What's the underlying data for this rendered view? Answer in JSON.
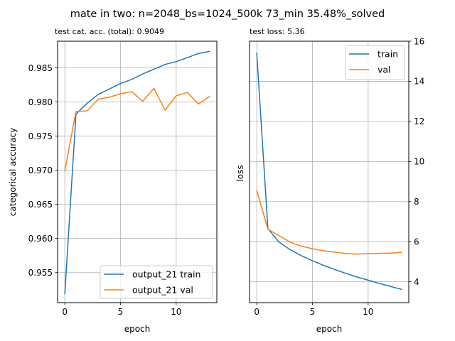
{
  "figure": {
    "suptitle": "mate in two: n=2048_bs=1024_500k  73_min  35.48%_solved"
  },
  "colors": {
    "train": "#1f77b4",
    "val": "#ff7f0e"
  },
  "chart_data": [
    {
      "type": "line",
      "title": "test cat. acc. (total): 0.9049",
      "xlabel": "epoch",
      "ylabel": "categorical accuracy",
      "xlim": [
        -0.65,
        13.65
      ],
      "ylim": [
        0.9506,
        0.9889
      ],
      "xticks": [
        0,
        5,
        10
      ],
      "xtick_labels": [
        "0",
        "5",
        "10"
      ],
      "yticks": [
        0.955,
        0.96,
        0.965,
        0.97,
        0.975,
        0.98,
        0.985
      ],
      "ytick_labels": [
        "0.955",
        "0.960",
        "0.965",
        "0.970",
        "0.975",
        "0.980",
        "0.985"
      ],
      "yaxis_side": "left",
      "grid": true,
      "legend_position": "lower-right",
      "x": [
        0,
        1,
        2,
        3,
        4,
        5,
        6,
        7,
        8,
        9,
        10,
        11,
        12,
        13
      ],
      "series": [
        {
          "name": "output_21 train",
          "color_key": "train",
          "values": [
            0.9519,
            0.9782,
            0.9798,
            0.9811,
            0.9819,
            0.9827,
            0.9833,
            0.9841,
            0.9848,
            0.9855,
            0.9859,
            0.9865,
            0.9871,
            0.9874
          ]
        },
        {
          "name": "output_21 val",
          "color_key": "val",
          "values": [
            0.9699,
            0.9786,
            0.9787,
            0.9804,
            0.9807,
            0.9812,
            0.9815,
            0.9801,
            0.982,
            0.9788,
            0.9809,
            0.9814,
            0.9797,
            0.9808
          ]
        }
      ]
    },
    {
      "type": "line",
      "title": "test loss: 5.36",
      "xlabel": "epoch",
      "ylabel": "loss",
      "xlim": [
        -0.65,
        13.65
      ],
      "ylim": [
        2.96,
        16.0
      ],
      "xticks": [
        0,
        5,
        10
      ],
      "xtick_labels": [
        "0",
        "5",
        "10"
      ],
      "yticks": [
        4,
        6,
        8,
        10,
        12,
        14,
        16
      ],
      "ytick_labels": [
        "4",
        "6",
        "8",
        "10",
        "12",
        "14",
        "16"
      ],
      "yaxis_side": "right",
      "grid": true,
      "legend_position": "upper-right",
      "x": [
        0,
        1,
        2,
        3,
        4,
        5,
        6,
        7,
        8,
        9,
        10,
        11,
        12,
        13
      ],
      "series": [
        {
          "name": "train",
          "color_key": "train",
          "values": [
            15.4,
            6.65,
            5.98,
            5.6,
            5.3,
            5.05,
            4.82,
            4.61,
            4.42,
            4.24,
            4.08,
            3.92,
            3.77,
            3.62
          ]
        },
        {
          "name": "val",
          "color_key": "val",
          "values": [
            8.55,
            6.62,
            6.3,
            5.98,
            5.78,
            5.65,
            5.55,
            5.48,
            5.41,
            5.38,
            5.41,
            5.42,
            5.43,
            5.47
          ]
        }
      ]
    }
  ]
}
